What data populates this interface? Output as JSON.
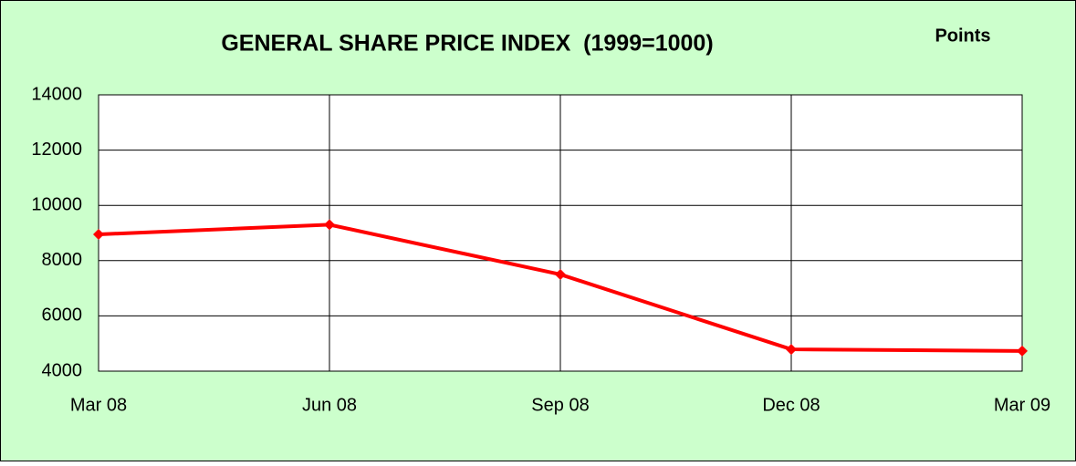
{
  "chart_data": {
    "type": "line",
    "title": "GENERAL SHARE PRICE INDEX  (1999=1000)",
    "y_unit": "Points",
    "categories": [
      "Mar 08",
      "Jun 08",
      "Sep 08",
      "Dec 08",
      "Mar 09"
    ],
    "series": [
      {
        "name": "General Share Price Index",
        "color": "#ff0000",
        "values": [
          8950,
          9300,
          7500,
          4790,
          4730
        ]
      }
    ],
    "ylim": [
      4000,
      14000
    ],
    "yticks": [
      4000,
      6000,
      8000,
      10000,
      12000,
      14000
    ],
    "grid": true
  }
}
